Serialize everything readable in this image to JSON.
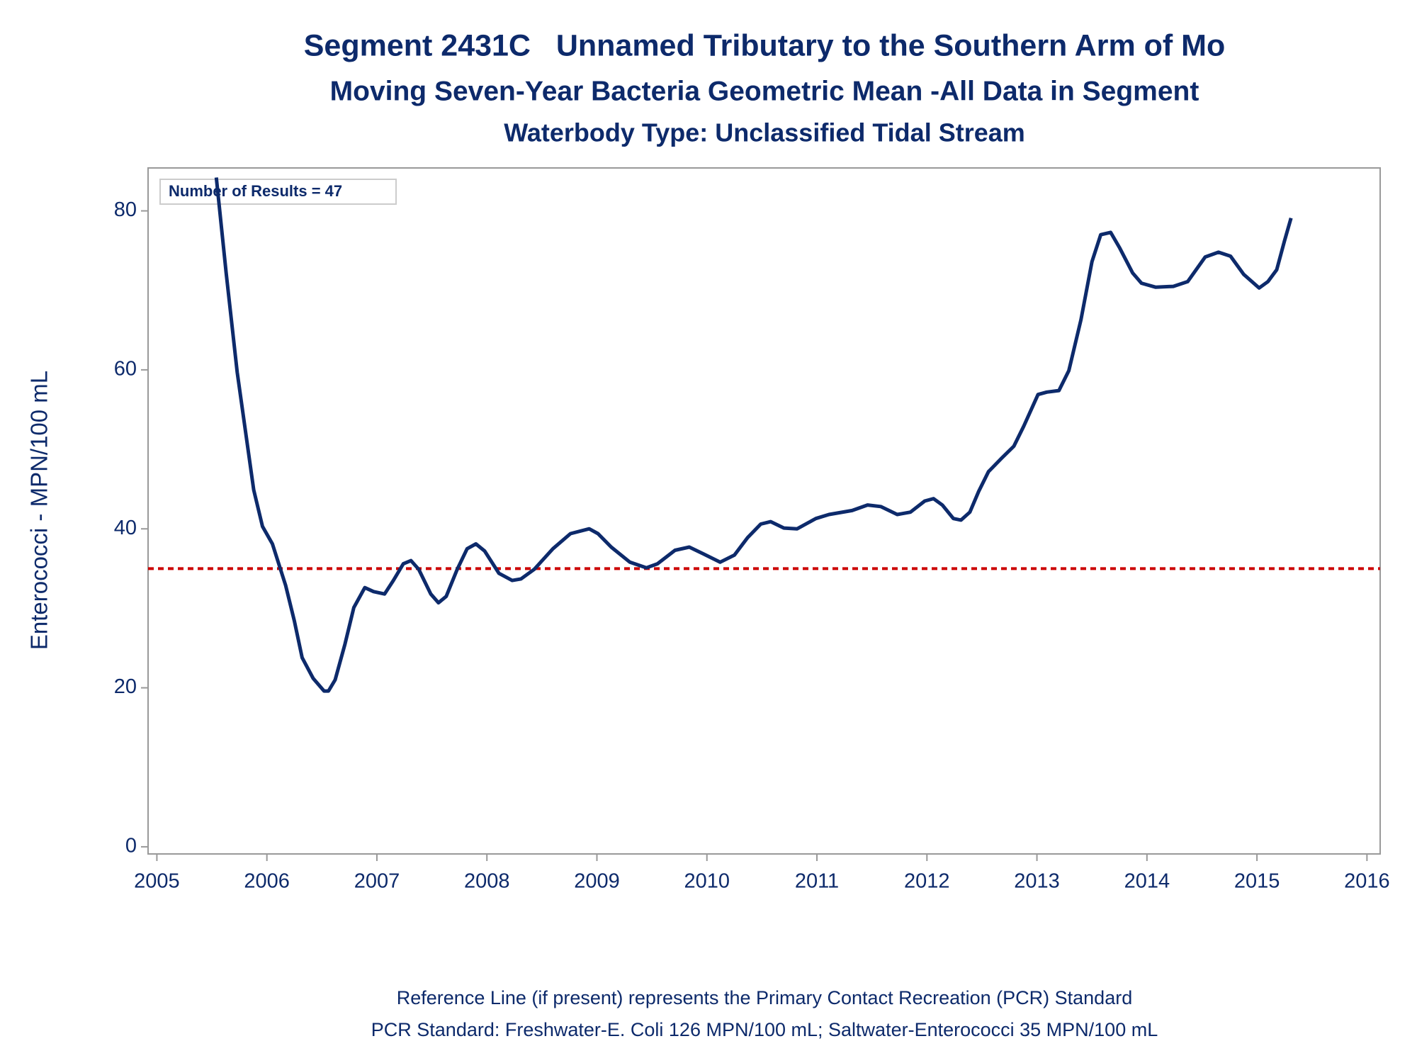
{
  "chart_data": {
    "type": "line",
    "title": "Segment 2431C   Unnamed Tributary to the Southern Arm of Mo",
    "subtitles": [
      "Moving Seven-Year Bacteria Geometric Mean -All Data in Segment",
      "Waterbody Type: Unclassified Tidal Stream"
    ],
    "ylabel": "Enterococci - MPN/100 mL",
    "annotation": "Number of Results = 47",
    "footnotes": [
      "Reference Line (if present) represents the Primary Contact Recreation (PCR) Standard",
      "PCR Standard: Freshwater-E. Coli 126 MPN/100 mL; Saltwater-Enterococci 35 MPN/100 mL"
    ],
    "color": "#0d2a6b",
    "reference_line": {
      "value": 35,
      "color": "#cc0000"
    },
    "xlim": [
      2004.92,
      2016.12
    ],
    "xticks": [
      2005,
      2006,
      2007,
      2008,
      2009,
      2010,
      2011,
      2012,
      2013,
      2014,
      2015,
      2016
    ],
    "ylim": [
      -0.9,
      85.4
    ],
    "yticks": [
      0,
      20,
      40,
      60,
      80
    ],
    "x": [
      2005.54,
      2005.63,
      2005.73,
      2005.88,
      2005.96,
      2006.05,
      2006.17,
      2006.25,
      2006.32,
      2006.42,
      2006.52,
      2006.56,
      2006.62,
      2006.71,
      2006.79,
      2006.89,
      2006.97,
      2007.07,
      2007.15,
      2007.24,
      2007.31,
      2007.38,
      2007.49,
      2007.56,
      2007.63,
      2007.73,
      2007.82,
      2007.9,
      2007.98,
      2008.11,
      2008.23,
      2008.31,
      2008.43,
      2008.6,
      2008.76,
      2008.93,
      2009.01,
      2009.13,
      2009.3,
      2009.45,
      2009.55,
      2009.71,
      2009.84,
      2009.96,
      2010.12,
      2010.25,
      2010.37,
      2010.49,
      2010.58,
      2010.7,
      2010.82,
      2010.99,
      2011.11,
      2011.32,
      2011.46,
      2011.58,
      2011.73,
      2011.85,
      2011.98,
      2012.06,
      2012.14,
      2012.24,
      2012.31,
      2012.39,
      2012.47,
      2012.56,
      2012.68,
      2012.79,
      2012.88,
      2013.01,
      2013.09,
      2013.2,
      2013.29,
      2013.4,
      2013.5,
      2013.58,
      2013.67,
      2013.75,
      2013.87,
      2013.95,
      2014.08,
      2014.24,
      2014.37,
      2014.53,
      2014.65,
      2014.76,
      2014.88,
      2015.02,
      2015.1,
      2015.18,
      2015.25,
      2015.31
    ],
    "values": [
      84.2,
      72.2,
      59.7,
      44.9,
      40.3,
      38.1,
      32.9,
      28.4,
      23.8,
      21.2,
      19.6,
      19.6,
      21.0,
      25.5,
      30.1,
      32.6,
      32.1,
      31.8,
      33.5,
      35.6,
      36.0,
      34.9,
      31.8,
      30.7,
      31.5,
      34.9,
      37.5,
      38.1,
      37.2,
      34.4,
      33.5,
      33.7,
      34.9,
      37.5,
      39.4,
      40.0,
      39.4,
      37.7,
      35.8,
      35.1,
      35.6,
      37.3,
      37.7,
      36.9,
      35.8,
      36.7,
      38.9,
      40.6,
      40.9,
      40.1,
      40.0,
      41.3,
      41.8,
      42.3,
      43.0,
      42.8,
      41.8,
      42.1,
      43.5,
      43.8,
      43.0,
      41.3,
      41.1,
      42.1,
      44.7,
      47.2,
      48.9,
      50.4,
      52.9,
      56.9,
      57.2,
      57.4,
      59.9,
      66.3,
      73.6,
      77.0,
      77.3,
      75.4,
      72.2,
      70.9,
      70.4,
      70.5,
      71.1,
      74.2,
      74.8,
      74.3,
      72.0,
      70.3,
      71.1,
      72.6,
      76.2,
      79.1
    ]
  }
}
